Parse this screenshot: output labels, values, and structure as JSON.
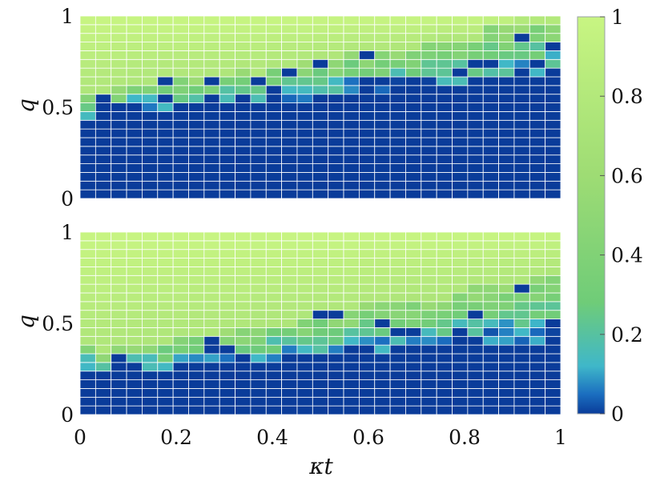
{
  "chart_data": [
    {
      "type": "heatmap",
      "panel": "top",
      "ylabel": "q",
      "xlabel": "",
      "xlim": [
        0,
        1
      ],
      "ylim": [
        0,
        1
      ],
      "y_ticks": [
        "0",
        "0.5",
        "1"
      ],
      "x_ticks": [],
      "grid": "31 columns x 21 rows, white cell borders",
      "boundary_q_by_column": [
        0.45,
        0.48,
        0.48,
        0.5,
        0.5,
        0.5,
        0.5,
        0.5,
        0.5,
        0.5,
        0.5,
        0.5,
        0.52,
        0.53,
        0.53,
        0.55,
        0.55,
        0.58,
        0.58,
        0.58,
        0.6,
        0.6,
        0.6,
        0.62,
        0.62,
        0.62,
        0.65,
        0.65,
        0.67,
        0.67,
        0.67
      ],
      "transition_width_by_column": [
        0.12,
        0.1,
        0.12,
        0.13,
        0.13,
        0.15,
        0.15,
        0.15,
        0.18,
        0.17,
        0.2,
        0.18,
        0.2,
        0.2,
        0.22,
        0.22,
        0.22,
        0.22,
        0.22,
        0.22,
        0.22,
        0.22,
        0.25,
        0.25,
        0.25,
        0.25,
        0.28,
        0.28,
        0.3,
        0.3,
        0.3
      ],
      "value_range": [
        0,
        1
      ]
    },
    {
      "type": "heatmap",
      "panel": "bottom",
      "ylabel": "q",
      "xlabel": "κt",
      "xlim": [
        0,
        1
      ],
      "ylim": [
        0,
        1
      ],
      "y_ticks": [
        "0",
        "0.5",
        "1"
      ],
      "x_ticks": [
        "0",
        "0.2",
        "0.4",
        "0.6",
        "0.8",
        "1"
      ],
      "grid": "31 columns x 21 rows, white cell borders",
      "boundary_q_by_column": [
        0.25,
        0.22,
        0.25,
        0.25,
        0.25,
        0.25,
        0.27,
        0.27,
        0.27,
        0.28,
        0.28,
        0.3,
        0.3,
        0.3,
        0.3,
        0.33,
        0.33,
        0.33,
        0.35,
        0.35,
        0.37,
        0.37,
        0.37,
        0.37,
        0.37,
        0.4,
        0.4,
        0.4,
        0.4,
        0.4,
        0.43
      ],
      "transition_width_by_column": [
        0.12,
        0.12,
        0.12,
        0.13,
        0.15,
        0.15,
        0.15,
        0.17,
        0.17,
        0.18,
        0.18,
        0.2,
        0.2,
        0.2,
        0.22,
        0.22,
        0.22,
        0.22,
        0.25,
        0.25,
        0.25,
        0.27,
        0.27,
        0.27,
        0.3,
        0.3,
        0.3,
        0.32,
        0.32,
        0.35,
        0.35
      ],
      "value_range": [
        0,
        1
      ]
    }
  ],
  "colorbar": {
    "range": [
      0,
      1
    ],
    "ticks": [
      "0",
      "0.2",
      "0.4",
      "0.6",
      "0.8",
      "1"
    ],
    "colors": {
      "low": "#0a3c9a",
      "low_mid": "#1b6fc0",
      "mid": "#3fb7c9",
      "high_mid": "#86cf6e",
      "high": "#c8f582"
    }
  }
}
